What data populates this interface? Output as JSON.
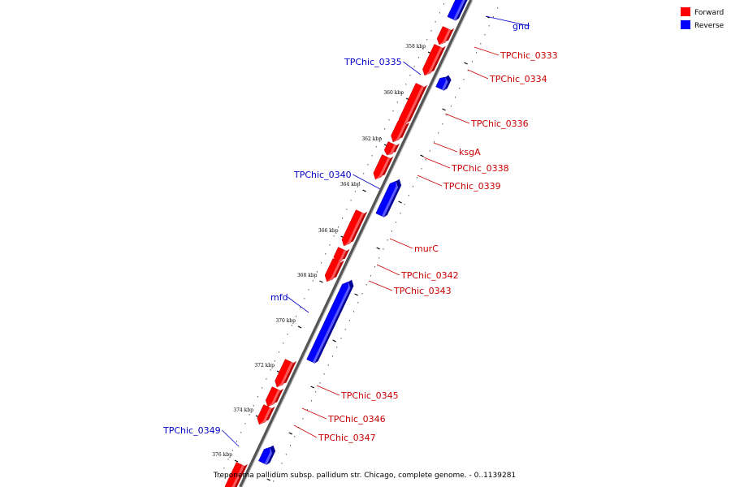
{
  "caption": "Treponema pallidum subsp. pallidum str. Chicago, complete genome. - 0..1139281",
  "legend": [
    {
      "label": "Forward",
      "color": "#ff0000"
    },
    {
      "label": "Reverse",
      "color": "#0000ff"
    }
  ],
  "colors": {
    "forward": "#ff0000",
    "forward_dark": "#b80000",
    "forward_label": "#cc0000",
    "reverse": "#0000ff",
    "reverse_dark": "#000099",
    "reverse_label": "#0000cc",
    "backbone": "#777777"
  },
  "ticks": [
    "358 kbp",
    "360 kbp",
    "362 kbp",
    "364 kbp",
    "366 kbp",
    "368 kbp",
    "370 kbp",
    "372 kbp",
    "374 kbp",
    "376 kbp"
  ],
  "genes": [
    {
      "name": "gnd",
      "strand": "reverse",
      "labeled": true
    },
    {
      "name": "TPChic_0333",
      "strand": "forward",
      "labeled": true
    },
    {
      "name": "TPChic_0334",
      "strand": "forward",
      "labeled": true
    },
    {
      "name": "TPChic_0335",
      "strand": "reverse",
      "labeled": true
    },
    {
      "name": "TPChic_0336",
      "strand": "forward",
      "labeled": true
    },
    {
      "name": "ksgA",
      "strand": "forward",
      "labeled": true
    },
    {
      "name": "TPChic_0338",
      "strand": "forward",
      "labeled": true
    },
    {
      "name": "TPChic_0339",
      "strand": "forward",
      "labeled": true
    },
    {
      "name": "TPChic_0340",
      "strand": "reverse",
      "labeled": true
    },
    {
      "name": "murC",
      "strand": "forward",
      "labeled": true
    },
    {
      "name": "TPChic_0342",
      "strand": "forward",
      "labeled": true
    },
    {
      "name": "TPChic_0343",
      "strand": "forward",
      "labeled": true
    },
    {
      "name": "mfd",
      "strand": "reverse",
      "labeled": true
    },
    {
      "name": "TPChic_0345",
      "strand": "forward",
      "labeled": true
    },
    {
      "name": "TPChic_0346",
      "strand": "forward",
      "labeled": true
    },
    {
      "name": "TPChic_0347",
      "strand": "forward",
      "labeled": true
    },
    {
      "name": "TPChic_0349",
      "strand": "reverse",
      "labeled": true
    },
    {
      "name": "",
      "strand": "forward",
      "labeled": false
    }
  ]
}
